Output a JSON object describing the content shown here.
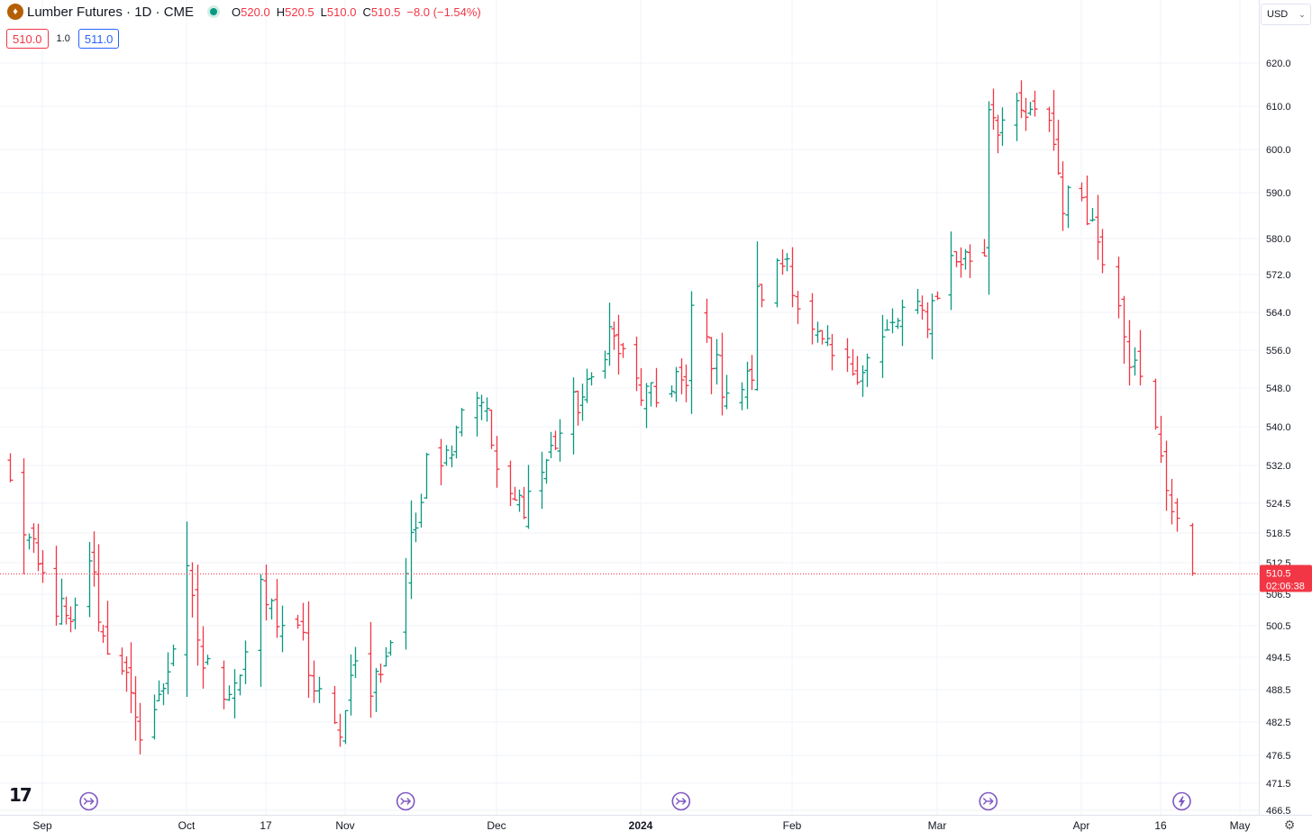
{
  "header": {
    "symbol_icon": "lumber-icon",
    "title": "Lumber Futures · 1D · CME",
    "ohlc": {
      "open_label": "O",
      "open": "520.0",
      "high_label": "H",
      "high": "520.5",
      "low_label": "L",
      "low": "510.0",
      "close_label": "C",
      "close": "510.5",
      "change": "−8.0 (−1.54%)"
    },
    "sell_price": "510.0",
    "spread": "1.0",
    "buy_price": "511.0"
  },
  "currency_selector": {
    "value": "USD"
  },
  "last_price": {
    "value": "510.5",
    "countdown": "02:06:38"
  },
  "logo_text": "17",
  "chart_data": {
    "type": "ohlc",
    "symbol": "Lumber Futures",
    "interval": "1D",
    "exchange": "CME",
    "colors": {
      "up": "#089981",
      "down": "#f23645",
      "last_line": "#f23645",
      "event_marker": "#7e57c2"
    },
    "y_ticks": [
      620.0,
      610.0,
      600.0,
      590.0,
      580.0,
      572.0,
      564.0,
      556.0,
      548.0,
      540.0,
      532.0,
      524.5,
      518.5,
      512.5,
      506.5,
      500.5,
      494.5,
      488.5,
      482.5,
      476.5,
      471.5,
      466.5
    ],
    "y_tick_labels": [
      "620.0",
      "610.0",
      "600.0",
      "590.0",
      "580.0",
      "572.0",
      "564.0",
      "556.0",
      "548.0",
      "540.0",
      "532.0",
      "524.5",
      "518.5",
      "512.5",
      "506.5",
      "500.5",
      "494.5",
      "488.5",
      "482.5",
      "476.5",
      "471.5",
      "466.5"
    ],
    "x_labels": [
      {
        "label": "Sep",
        "date": "2023-09-01"
      },
      {
        "label": "Oct",
        "date": "2023-10-02"
      },
      {
        "label": "17",
        "date": "2023-10-17"
      },
      {
        "label": "Nov",
        "date": "2023-11-01"
      },
      {
        "label": "Dec",
        "date": "2023-12-01"
      },
      {
        "label": "2024",
        "date": "2024-01-02",
        "bold": true
      },
      {
        "label": "Feb",
        "date": "2024-02-01"
      },
      {
        "label": "Mar",
        "date": "2024-03-01"
      },
      {
        "label": "Apr",
        "date": "2024-04-01"
      },
      {
        "label": "16",
        "date": "2024-04-16"
      },
      {
        "label": "May",
        "date": "2024-05-01"
      }
    ],
    "event_marker_dates": [
      {
        "date": "2023-09-11",
        "kind": "arrows"
      },
      {
        "date": "2023-11-13",
        "kind": "arrows"
      },
      {
        "date": "2024-01-10",
        "kind": "arrows"
      },
      {
        "date": "2024-03-12",
        "kind": "arrows"
      },
      {
        "date": "2024-04-20",
        "kind": "lightning"
      }
    ],
    "waypoints": [
      [
        "2023-08-25",
        528
      ],
      [
        "2023-08-31",
        511
      ],
      [
        "2023-09-05",
        503
      ],
      [
        "2023-09-07",
        499
      ],
      [
        "2023-09-11",
        514
      ],
      [
        "2023-09-14",
        498
      ],
      [
        "2023-09-18",
        494
      ],
      [
        "2023-09-21",
        481
      ],
      [
        "2023-09-26",
        486
      ],
      [
        "2023-09-29",
        497
      ],
      [
        "2023-10-02",
        509
      ],
      [
        "2023-10-05",
        493
      ],
      [
        "2023-10-09",
        489
      ],
      [
        "2023-10-12",
        492
      ],
      [
        "2023-10-16",
        506
      ],
      [
        "2023-10-20",
        501
      ],
      [
        "2023-10-24",
        497
      ],
      [
        "2023-10-26",
        488
      ],
      [
        "2023-10-30",
        481
      ],
      [
        "2023-11-01",
        484
      ],
      [
        "2023-11-02",
        494
      ],
      [
        "2023-11-06",
        488
      ],
      [
        "2023-11-10",
        498
      ],
      [
        "2023-11-13",
        511
      ],
      [
        "2023-11-15",
        520
      ],
      [
        "2023-11-17",
        536
      ],
      [
        "2023-11-21",
        534
      ],
      [
        "2023-11-24",
        545
      ],
      [
        "2023-11-28",
        547
      ],
      [
        "2023-12-01",
        531
      ],
      [
        "2023-12-04",
        524
      ],
      [
        "2023-12-07",
        525
      ],
      [
        "2023-12-11",
        531
      ],
      [
        "2023-12-14",
        537
      ],
      [
        "2023-12-18",
        544
      ],
      [
        "2023-12-21",
        547
      ],
      [
        "2023-12-26",
        560
      ],
      [
        "2023-12-28",
        556
      ],
      [
        "2024-01-02",
        547
      ],
      [
        "2024-01-05",
        545
      ],
      [
        "2024-01-09",
        551
      ],
      [
        "2024-01-11",
        546
      ],
      [
        "2024-01-12",
        565
      ],
      [
        "2024-01-16",
        555
      ],
      [
        "2024-01-18",
        549
      ],
      [
        "2024-01-22",
        548
      ],
      [
        "2024-01-24",
        551
      ],
      [
        "2024-01-25",
        567
      ],
      [
        "2024-01-29",
        573
      ],
      [
        "2024-01-31",
        576
      ],
      [
        "2024-02-02",
        566
      ],
      [
        "2024-02-05",
        559
      ],
      [
        "2024-02-08",
        555
      ],
      [
        "2024-02-12",
        552
      ],
      [
        "2024-02-15",
        553
      ],
      [
        "2024-02-20",
        559
      ],
      [
        "2024-02-23",
        564
      ],
      [
        "2024-02-28",
        563
      ],
      [
        "2024-03-01",
        569
      ],
      [
        "2024-03-04",
        575
      ],
      [
        "2024-03-08",
        576
      ],
      [
        "2024-03-11",
        577
      ],
      [
        "2024-03-12",
        611
      ],
      [
        "2024-03-14",
        606
      ],
      [
        "2024-03-18",
        608
      ],
      [
        "2024-03-21",
        607
      ],
      [
        "2024-03-25",
        608
      ],
      [
        "2024-03-28",
        588
      ],
      [
        "2024-04-01",
        590
      ],
      [
        "2024-04-04",
        580
      ],
      [
        "2024-04-08",
        568
      ],
      [
        "2024-04-10",
        555
      ],
      [
        "2024-04-12",
        549
      ],
      [
        "2024-04-16",
        535
      ],
      [
        "2024-04-18",
        523
      ],
      [
        "2024-04-19",
        518.5
      ],
      [
        "2024-04-22",
        510.5
      ]
    ]
  }
}
